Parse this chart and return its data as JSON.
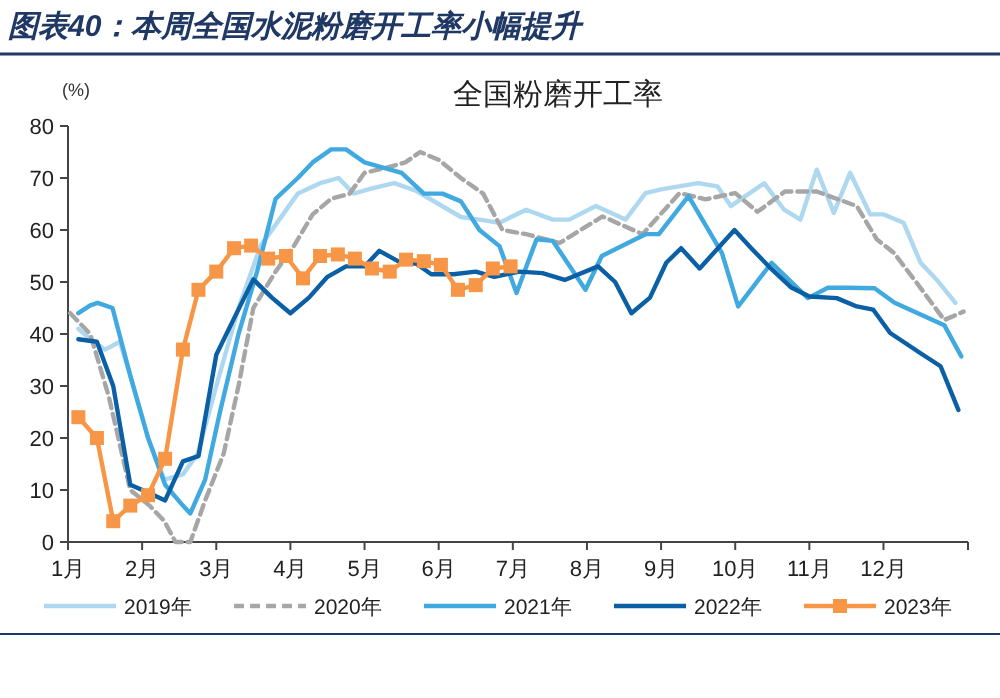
{
  "chart_data": {
    "type": "line",
    "title": "图表40：本周全国水泥粉磨开工率小幅提升",
    "subtitle": "全国粉磨开工率",
    "ylabel": "(%)",
    "xlim": [
      1,
      13.14
    ],
    "ylim": [
      0,
      80
    ],
    "yticks": [
      0,
      10,
      20,
      30,
      40,
      50,
      60,
      70,
      80
    ],
    "xticks": [
      {
        "value": 1,
        "label": "1月"
      },
      {
        "value": 2,
        "label": "2月"
      },
      {
        "value": 3,
        "label": "3月"
      },
      {
        "value": 4,
        "label": "4月"
      },
      {
        "value": 5,
        "label": "5月"
      },
      {
        "value": 6,
        "label": "6月"
      },
      {
        "value": 7,
        "label": "7月"
      },
      {
        "value": 8,
        "label": "8月"
      },
      {
        "value": 9,
        "label": "9月"
      },
      {
        "value": 10,
        "label": "10月"
      },
      {
        "value": 11,
        "label": "11月"
      },
      {
        "value": 12,
        "label": "12月"
      },
      {
        "value": 13.14,
        "label": null
      }
    ],
    "legend": "bottom",
    "marker": "none",
    "line_style": "solid",
    "series": [
      {
        "name": "2019年",
        "color": "#add8f0",
        "x": [
          1.14,
          1.3,
          1.5,
          1.7,
          1.84,
          2.08,
          2.3,
          2.55,
          2.75,
          3.0,
          3.3,
          3.6,
          3.85,
          4.1,
          4.4,
          4.65,
          4.85,
          5.1,
          5.4,
          5.7,
          6.0,
          6.3,
          6.55,
          6.82,
          7.18,
          7.54,
          7.76,
          8.12,
          8.52,
          8.79,
          9.0,
          9.5,
          9.76,
          9.94,
          10.39,
          10.66,
          10.88,
          11.1,
          11.33,
          11.55,
          11.82,
          12.0,
          12.27,
          12.5,
          12.72,
          12.97
        ],
        "values": [
          41,
          39,
          37,
          38.5,
          32,
          20,
          12,
          13,
          17,
          30,
          45,
          57,
          62,
          67,
          69,
          70,
          67,
          68,
          69,
          67.5,
          65,
          62.5,
          62,
          61.4,
          63.9,
          62,
          62,
          64.6,
          62,
          67.1,
          67.8,
          69,
          68.4,
          64.6,
          69,
          63.9,
          62,
          71.6,
          63.3,
          71,
          63,
          63,
          61.4,
          53.7,
          50.4,
          46
        ]
      },
      {
        "name": "2020年",
        "color": "#a6a6a6",
        "line_style": "dashed",
        "x": [
          1.03,
          1.3,
          1.55,
          1.84,
          2.1,
          2.3,
          2.45,
          2.65,
          2.85,
          3.1,
          3.3,
          3.5,
          3.8,
          4.05,
          4.3,
          4.55,
          4.8,
          5.0,
          5.3,
          5.55,
          5.75,
          6.0,
          6.3,
          6.6,
          6.86,
          7.18,
          7.63,
          8.21,
          8.75,
          9.25,
          9.6,
          10.0,
          10.3,
          10.67,
          11.1,
          11.64,
          11.91,
          12.14,
          12.45,
          12.82,
          13.08
        ],
        "values": [
          44,
          40,
          28,
          10,
          7,
          4,
          0,
          0,
          8,
          17,
          30,
          45,
          52,
          57,
          63,
          66,
          67,
          71,
          72,
          73,
          75,
          73.5,
          70,
          67,
          60,
          59.2,
          57.5,
          62.6,
          59.2,
          67.1,
          65.9,
          67.1,
          63.5,
          67.4,
          67.4,
          64.6,
          58.2,
          55.6,
          49.8,
          42.7,
          44.3
        ]
      },
      {
        "name": "2021年",
        "color": "#3fa9e0",
        "x": [
          1.14,
          1.3,
          1.4,
          1.6,
          1.84,
          2.08,
          2.31,
          2.55,
          2.65,
          2.85,
          3.05,
          3.3,
          3.55,
          3.8,
          4.1,
          4.3,
          4.55,
          4.75,
          5.0,
          5.25,
          5.5,
          5.8,
          6.05,
          6.3,
          6.55,
          6.82,
          7.05,
          7.32,
          7.54,
          7.98,
          8.2,
          8.79,
          8.97,
          9.37,
          9.82,
          10.04,
          10.49,
          10.98,
          11.25,
          11.52,
          11.88,
          12.15,
          12.82,
          13.05
        ],
        "values": [
          44,
          45.5,
          46,
          45,
          32,
          20,
          11,
          7,
          5.5,
          12,
          25,
          40,
          52,
          66,
          70,
          73,
          75.5,
          75.5,
          73,
          72,
          71,
          67,
          67,
          65.5,
          60,
          56.9,
          47.9,
          58.2,
          57.9,
          48.5,
          55,
          59.2,
          59.2,
          66.5,
          55.6,
          45.3,
          53.7,
          46.9,
          48.9,
          48.9,
          48.8,
          46,
          41.7,
          35.7
        ]
      },
      {
        "name": "2022年",
        "color": "#0b5fa5",
        "x": [
          1.14,
          1.39,
          1.61,
          1.84,
          2.08,
          2.31,
          2.55,
          2.76,
          3.0,
          3.24,
          3.5,
          3.75,
          4.0,
          4.25,
          4.5,
          4.75,
          5.0,
          5.2,
          5.45,
          5.7,
          5.9,
          6.2,
          6.5,
          6.75,
          7.09,
          7.4,
          7.7,
          8.15,
          8.38,
          8.6,
          8.85,
          9.07,
          9.27,
          9.52,
          9.99,
          10.21,
          10.48,
          10.75,
          11.0,
          11.37,
          11.64,
          11.86,
          12.09,
          12.5,
          12.77,
          13.01
        ],
        "values": [
          39,
          38.5,
          30,
          11,
          9.5,
          8,
          15.5,
          16.5,
          36,
          43,
          50.5,
          47,
          44,
          47,
          51,
          53,
          53,
          56,
          54,
          53.5,
          51.5,
          51.5,
          52,
          51,
          52,
          51.7,
          50.4,
          53,
          50,
          44,
          47,
          53.7,
          56.5,
          52.6,
          60,
          56.6,
          52.6,
          49,
          47.2,
          46.9,
          45.3,
          44.7,
          40.2,
          36.3,
          33.8,
          25.4
        ]
      },
      {
        "name": "2023年",
        "color": "#f79646",
        "marker": "square",
        "x": [
          1.14,
          1.39,
          1.61,
          1.84,
          2.08,
          2.31,
          2.55,
          2.76,
          3.0,
          3.24,
          3.47,
          3.7,
          3.94,
          4.17,
          4.4,
          4.64,
          4.87,
          5.1,
          5.34,
          5.56,
          5.8,
          6.03,
          6.26,
          6.5,
          6.73,
          6.97
        ],
        "values": [
          24,
          20,
          4,
          7,
          9,
          16,
          37,
          48.5,
          52,
          56.5,
          57,
          54.5,
          55,
          50.7,
          55,
          55.3,
          54.5,
          52.6,
          52,
          54.3,
          54,
          53.3,
          48.5,
          49.4,
          52.6,
          53
        ]
      }
    ]
  }
}
